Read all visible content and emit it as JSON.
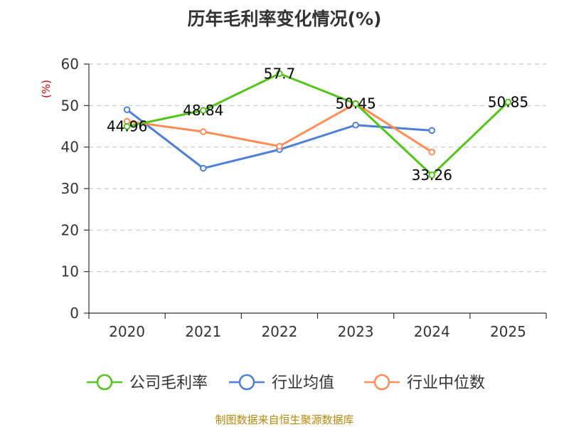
{
  "chart_data": {
    "type": "line",
    "title": "历年毛利率变化情况(%)",
    "ylabel": "(%)",
    "xlabel": "",
    "categories": [
      "2020",
      "2021",
      "2022",
      "2023",
      "2024",
      "2025"
    ],
    "ylim": [
      0,
      60
    ],
    "yticks": [
      0,
      10,
      20,
      30,
      40,
      50,
      60
    ],
    "grid": true,
    "legend_position": "bottom",
    "series": [
      {
        "name": "公司毛利率",
        "color": "#52c41a",
        "values": [
          44.96,
          48.84,
          57.7,
          50.45,
          33.26,
          50.85
        ],
        "labels": [
          "44.96",
          "48.84",
          "57.7",
          "50.45",
          "33.26",
          "50.85"
        ]
      },
      {
        "name": "行业均值",
        "color": "#4e7fd8",
        "values": [
          49.0,
          34.9,
          39.4,
          45.3,
          44.0,
          null
        ]
      },
      {
        "name": "行业中位数",
        "color": "#ff8c55",
        "values": [
          46.2,
          43.7,
          40.2,
          50.5,
          38.8,
          null
        ]
      }
    ],
    "source": "制图数据来自恒生聚源数据库"
  }
}
